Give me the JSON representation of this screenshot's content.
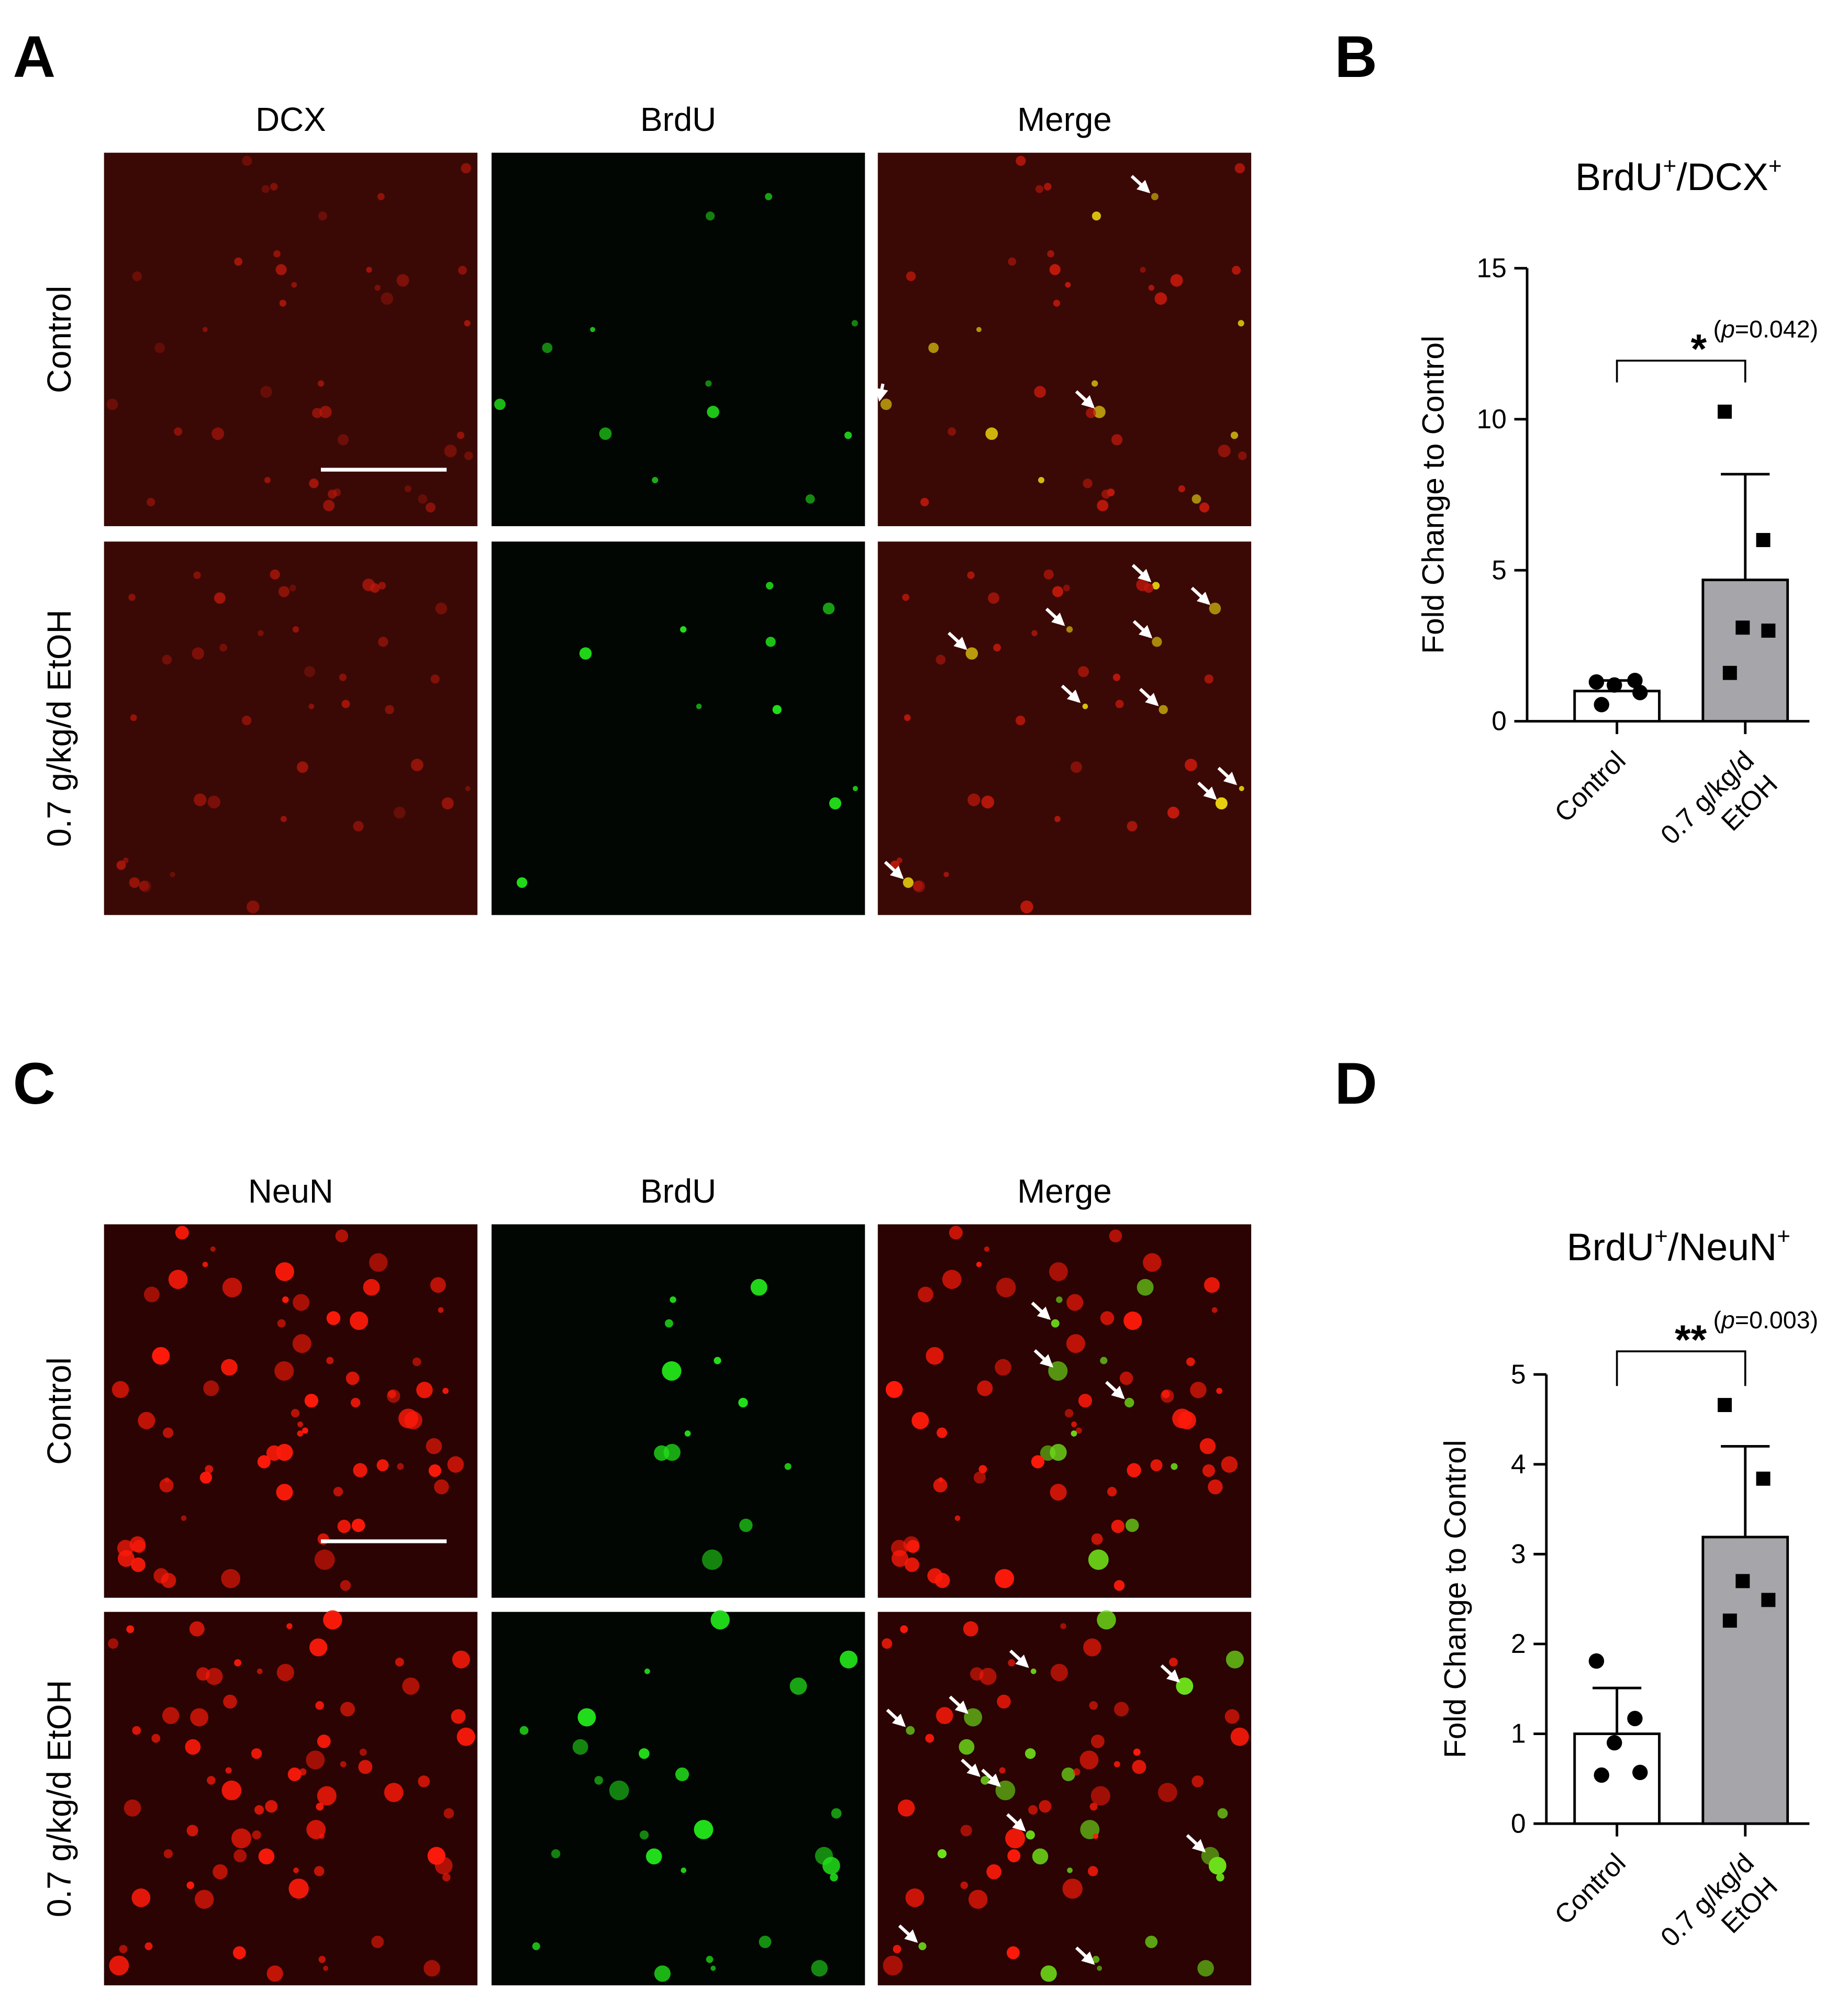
{
  "panels": [
    {
      "letter": "A",
      "columns": [
        "DCX",
        "BrdU",
        "Merge"
      ],
      "rows": [
        "Control",
        "0.7 g/kg/d EtOH"
      ]
    },
    {
      "letter": "C",
      "columns": [
        "NeuN",
        "BrdU",
        "Merge"
      ],
      "rows": [
        "Control",
        "0.7 g/kg/d EtOH"
      ]
    }
  ],
  "chart_letters": [
    "B",
    "D"
  ],
  "chart_data": [
    {
      "type": "bar",
      "title": [
        "BrdU",
        "+",
        "/DCX",
        "+"
      ],
      "ylabel": "Fold Change to Control",
      "categories": [
        "Control",
        "0.7 g/kg/d EtOH"
      ],
      "values": [
        1.0,
        4.68
      ],
      "errors": [
        0.35,
        3.5
      ],
      "colors": [
        "#ffffff",
        "#a6a6aa"
      ],
      "markers": [
        "circle",
        "square"
      ],
      "points": [
        [
          1.3,
          1.35,
          1.2,
          0.95,
          0.55
        ],
        [
          10.25,
          6.0,
          3.1,
          3.0,
          1.6
        ]
      ],
      "ylim": [
        0,
        15
      ],
      "yticks": [
        0,
        5,
        10,
        15
      ],
      "significance": {
        "stars": "*",
        "label": [
          "(",
          "p",
          "=0.042)"
        ]
      }
    },
    {
      "type": "bar",
      "title": [
        "BrdU",
        "+",
        "/NeuN",
        "+"
      ],
      "ylabel": "Fold Change to Control",
      "categories": [
        "Control",
        "0.7 g/kg/d EtOH"
      ],
      "values": [
        1.0,
        3.19
      ],
      "errors": [
        0.51,
        1.01
      ],
      "colors": [
        "#ffffff",
        "#a6a6aa"
      ],
      "markers": [
        "circle",
        "square"
      ],
      "points": [
        [
          1.81,
          1.17,
          0.9,
          0.57,
          0.54
        ],
        [
          4.66,
          3.84,
          2.7,
          2.49,
          2.26
        ]
      ],
      "ylim": [
        0,
        5
      ],
      "yticks": [
        0,
        1,
        2,
        3,
        4,
        5
      ],
      "significance": {
        "stars": "**",
        "label": [
          "(",
          "p",
          "=0.003)"
        ]
      }
    }
  ]
}
